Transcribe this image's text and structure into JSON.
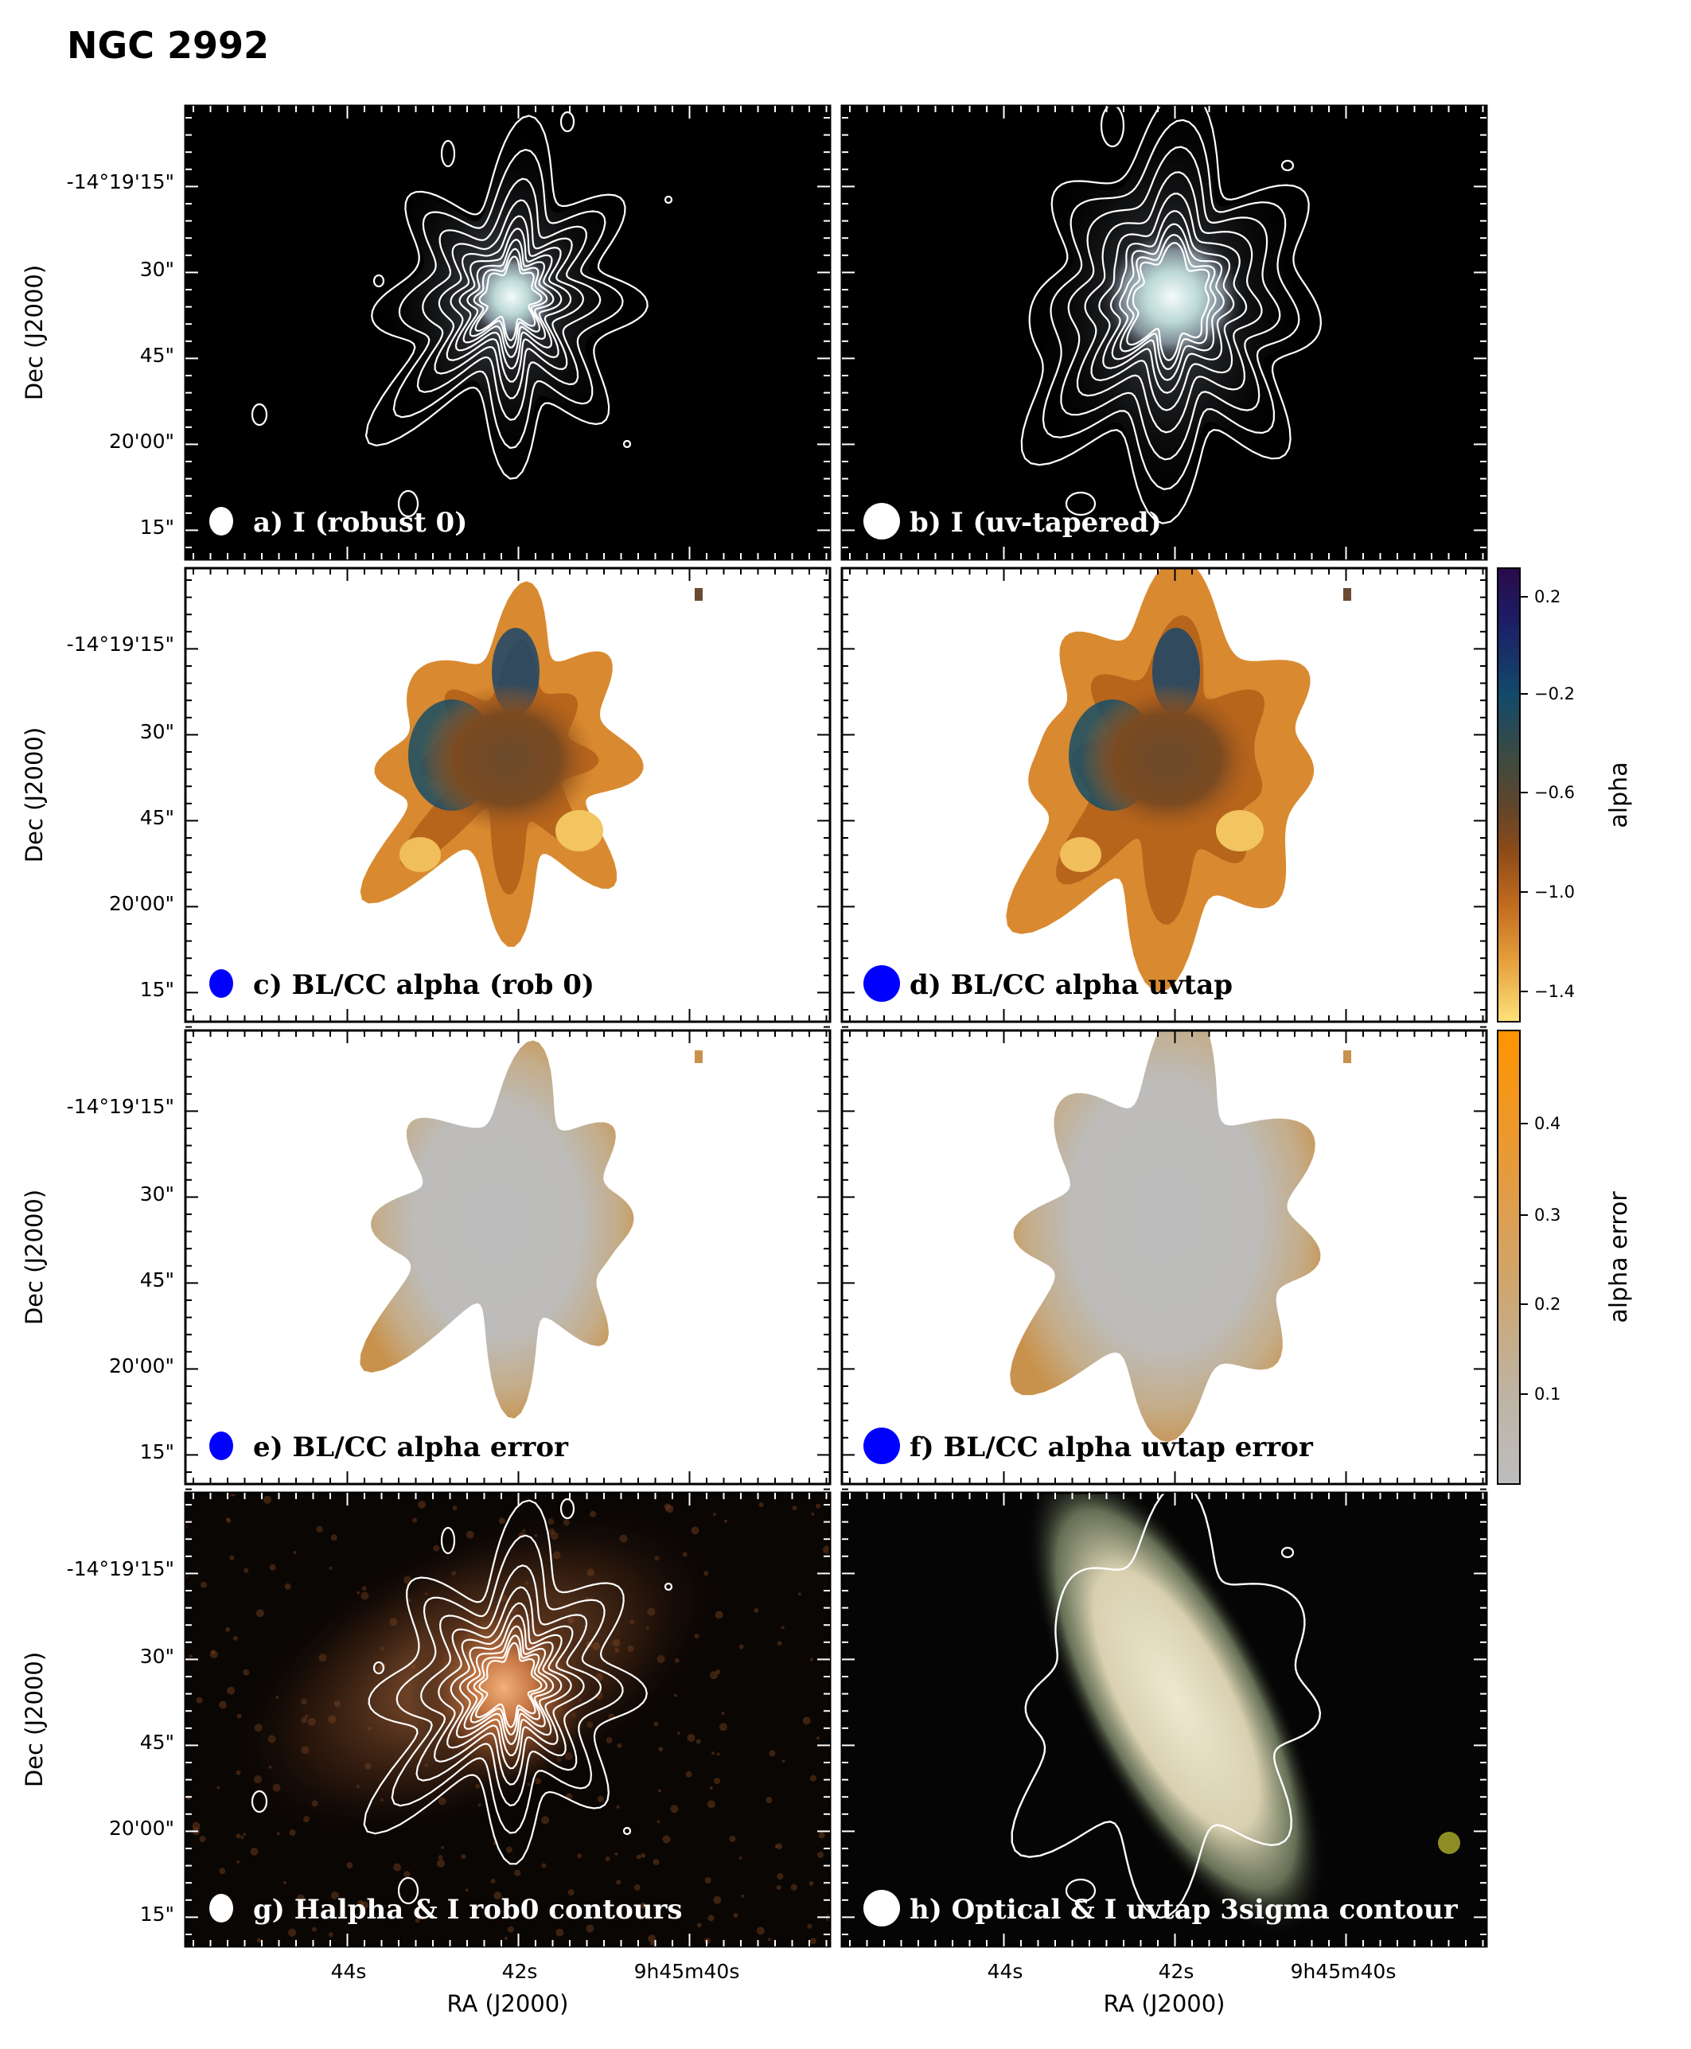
{
  "figure": {
    "title": "NGC 2992",
    "dec_ticks": [
      "-14°19'15\"",
      "30\"",
      "45\"",
      "20'00\"",
      "15\""
    ],
    "ra_ticks": [
      "44s",
      "42s",
      "9h45m40s"
    ],
    "ylabel": "Dec (J2000)",
    "xlabel": "RA (J2000)",
    "panels": [
      {
        "label": "a) I (robust 0)",
        "style": "intensity",
        "beam_color": "#ffffff",
        "label_color": "#ffffff"
      },
      {
        "label": "b) I (uv-tapered)",
        "style": "intensity_taper",
        "beam_color": "#ffffff",
        "label_color": "#ffffff"
      },
      {
        "label": "c) BL/CC alpha (rob 0)",
        "style": "alpha",
        "beam_color": "#0000ff",
        "label_color": "#000000"
      },
      {
        "label": "d) BL/CC alpha uvtap",
        "style": "alpha_taper",
        "beam_color": "#0000ff",
        "label_color": "#000000"
      },
      {
        "label": "e)  BL/CC alpha error",
        "style": "error",
        "beam_color": "#0000ff",
        "label_color": "#000000"
      },
      {
        "label": "f) BL/CC alpha uvtap error",
        "style": "error_taper",
        "beam_color": "#0000ff",
        "label_color": "#000000"
      },
      {
        "label": "g) Halpha & I rob0 contours",
        "style": "halpha",
        "beam_color": "#ffffff",
        "label_color": "#ffffff"
      },
      {
        "label": "h) Optical & I uvtap 3sigma contour",
        "style": "optical",
        "beam_color": "#ffffff",
        "label_color": "#ffffff"
      }
    ],
    "colorbars": [
      {
        "title": "alpha",
        "ticks": [
          "0.2",
          "−0.2",
          "−0.6",
          "−1.0",
          "−1.4"
        ],
        "colors": [
          "#2a0a4a",
          "#1a2a6a",
          "#14506a",
          "#4a4a3a",
          "#6e4520",
          "#a8561a",
          "#d8842a",
          "#f0b850",
          "#fde27a"
        ]
      },
      {
        "title": "alpha error",
        "ticks": [
          "0.4",
          "0.3",
          "0.2",
          "0.1"
        ],
        "colors": [
          "#ff9a00",
          "#e89a3a",
          "#d0a060",
          "#c0aa88",
          "#bcb8b2",
          "#bdbdbd"
        ]
      }
    ]
  }
}
